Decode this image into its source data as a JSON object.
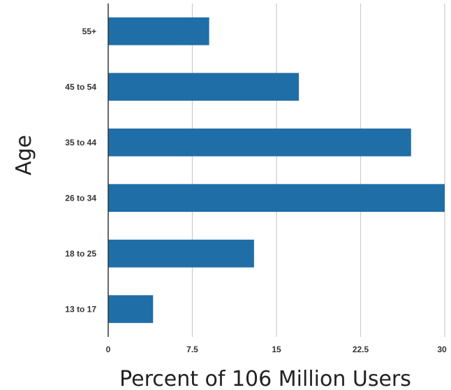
{
  "chart_data": {
    "type": "bar",
    "orientation": "horizontal",
    "categories": [
      "55+",
      "45 to 54",
      "35 to 44",
      "26 to 34",
      "18 to 25",
      "13 to 17"
    ],
    "values": [
      9,
      17,
      27,
      30,
      13,
      4
    ],
    "xlabel": "Percent of 106 Million Users",
    "ylabel": "Age",
    "xlim": [
      0,
      30
    ],
    "xticks": [
      "0",
      "7.5",
      "15",
      "22.5",
      "30"
    ],
    "grid": "vertical",
    "legend": "none",
    "bar_color": "#1f6ea8"
  }
}
